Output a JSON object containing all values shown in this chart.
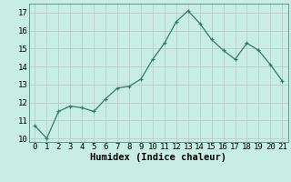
{
  "x": [
    0,
    1,
    2,
    3,
    4,
    5,
    6,
    7,
    8,
    9,
    10,
    11,
    12,
    13,
    14,
    15,
    16,
    17,
    18,
    19,
    20,
    21
  ],
  "y": [
    10.7,
    10.0,
    11.5,
    11.8,
    11.7,
    11.5,
    12.2,
    12.8,
    12.9,
    13.3,
    14.4,
    15.3,
    16.5,
    17.1,
    16.4,
    15.5,
    14.9,
    14.4,
    15.3,
    14.9,
    14.1,
    13.2
  ],
  "xlabel": "Humidex (Indice chaleur)",
  "ylim": [
    9.8,
    17.5
  ],
  "xlim": [
    -0.5,
    21.5
  ],
  "line_color": "#2e7d6e",
  "marker": "+",
  "bg_color": "#c8ede4",
  "grid_minor_color": "#aed4cc",
  "grid_major_color": "#e8b8c0",
  "yticks": [
    10,
    11,
    12,
    13,
    14,
    15,
    16,
    17
  ],
  "xticks": [
    0,
    1,
    2,
    3,
    4,
    5,
    6,
    7,
    8,
    9,
    10,
    11,
    12,
    13,
    14,
    15,
    16,
    17,
    18,
    19,
    20,
    21
  ],
  "xlabel_fontsize": 7.5,
  "tick_fontsize": 6.5
}
